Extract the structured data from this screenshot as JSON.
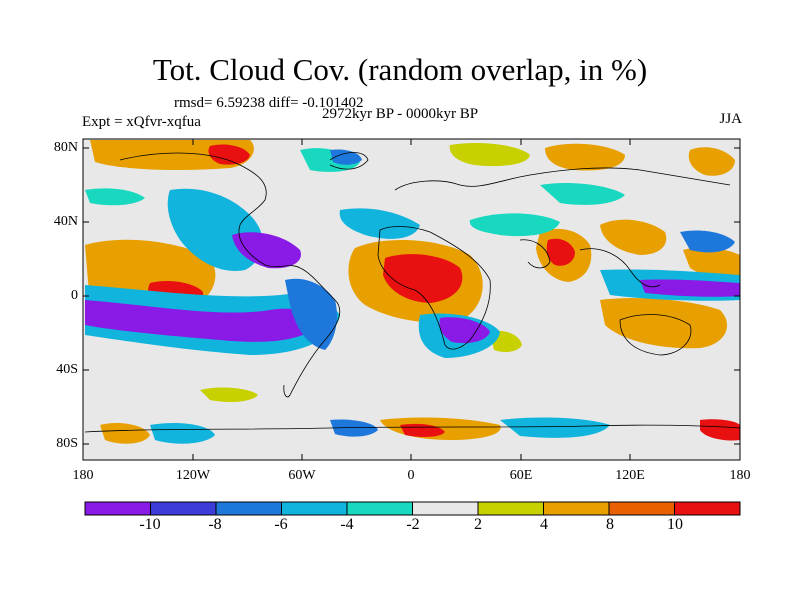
{
  "title": "Tot. Cloud Cov. (random overlap, in %)",
  "stats": "rmsd= 6.59238 diff= -0.101402",
  "period": "2972kyr BP - 0000kyr BP",
  "experiment": "Expt = xQfvr-xqfua",
  "season": "JJA",
  "lat_labels": [
    "80N",
    "40N",
    "0",
    "40S",
    "80S"
  ],
  "lon_labels": [
    "180",
    "120W",
    "60W",
    "0",
    "60E",
    "120E",
    "180"
  ],
  "colorbar": {
    "labels": [
      "-10",
      "-8",
      "-6",
      "-4",
      "-2",
      "2",
      "4",
      "8",
      "10"
    ],
    "colors": [
      "#8a1ae6",
      "#3c3cd8",
      "#1e78dc",
      "#10b4dc",
      "#18d8c0",
      "#e8e8e8",
      "#c8d000",
      "#e8a000",
      "#e86000",
      "#e81010"
    ]
  }
}
